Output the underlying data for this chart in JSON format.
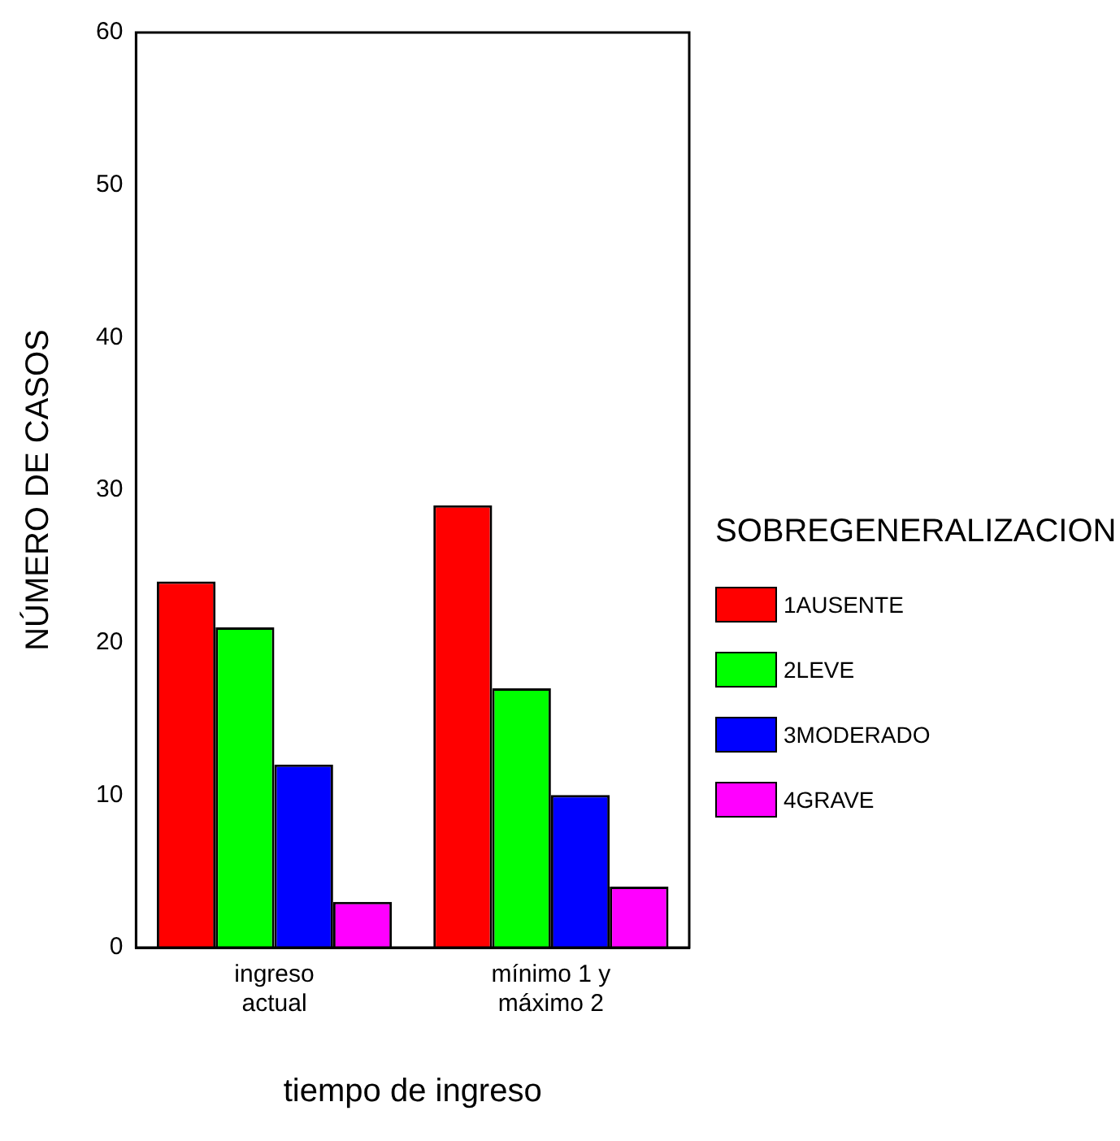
{
  "chart_data": {
    "type": "bar",
    "xlabel": "tiempo de ingreso",
    "ylabel": "NÚMERO DE CASOS",
    "legend_title": "SOBREGENERALIZACION",
    "categories": [
      "ingreso actual",
      "mínimo 1 y máximo 2"
    ],
    "series": [
      {
        "name": "1AUSENTE",
        "color": "#ff0000",
        "values": [
          24,
          29
        ]
      },
      {
        "name": "2LEVE",
        "color": "#00ff00",
        "values": [
          21,
          17
        ]
      },
      {
        "name": "3MODERADO",
        "color": "#0000ff",
        "values": [
          12,
          10
        ]
      },
      {
        "name": "4GRAVE",
        "color": "#ff00ff",
        "values": [
          3,
          4
        ]
      }
    ],
    "ylim": [
      0,
      60
    ],
    "yticks": [
      0,
      10,
      20,
      30,
      40,
      50,
      60
    ],
    "grid": false,
    "legend": "right"
  }
}
